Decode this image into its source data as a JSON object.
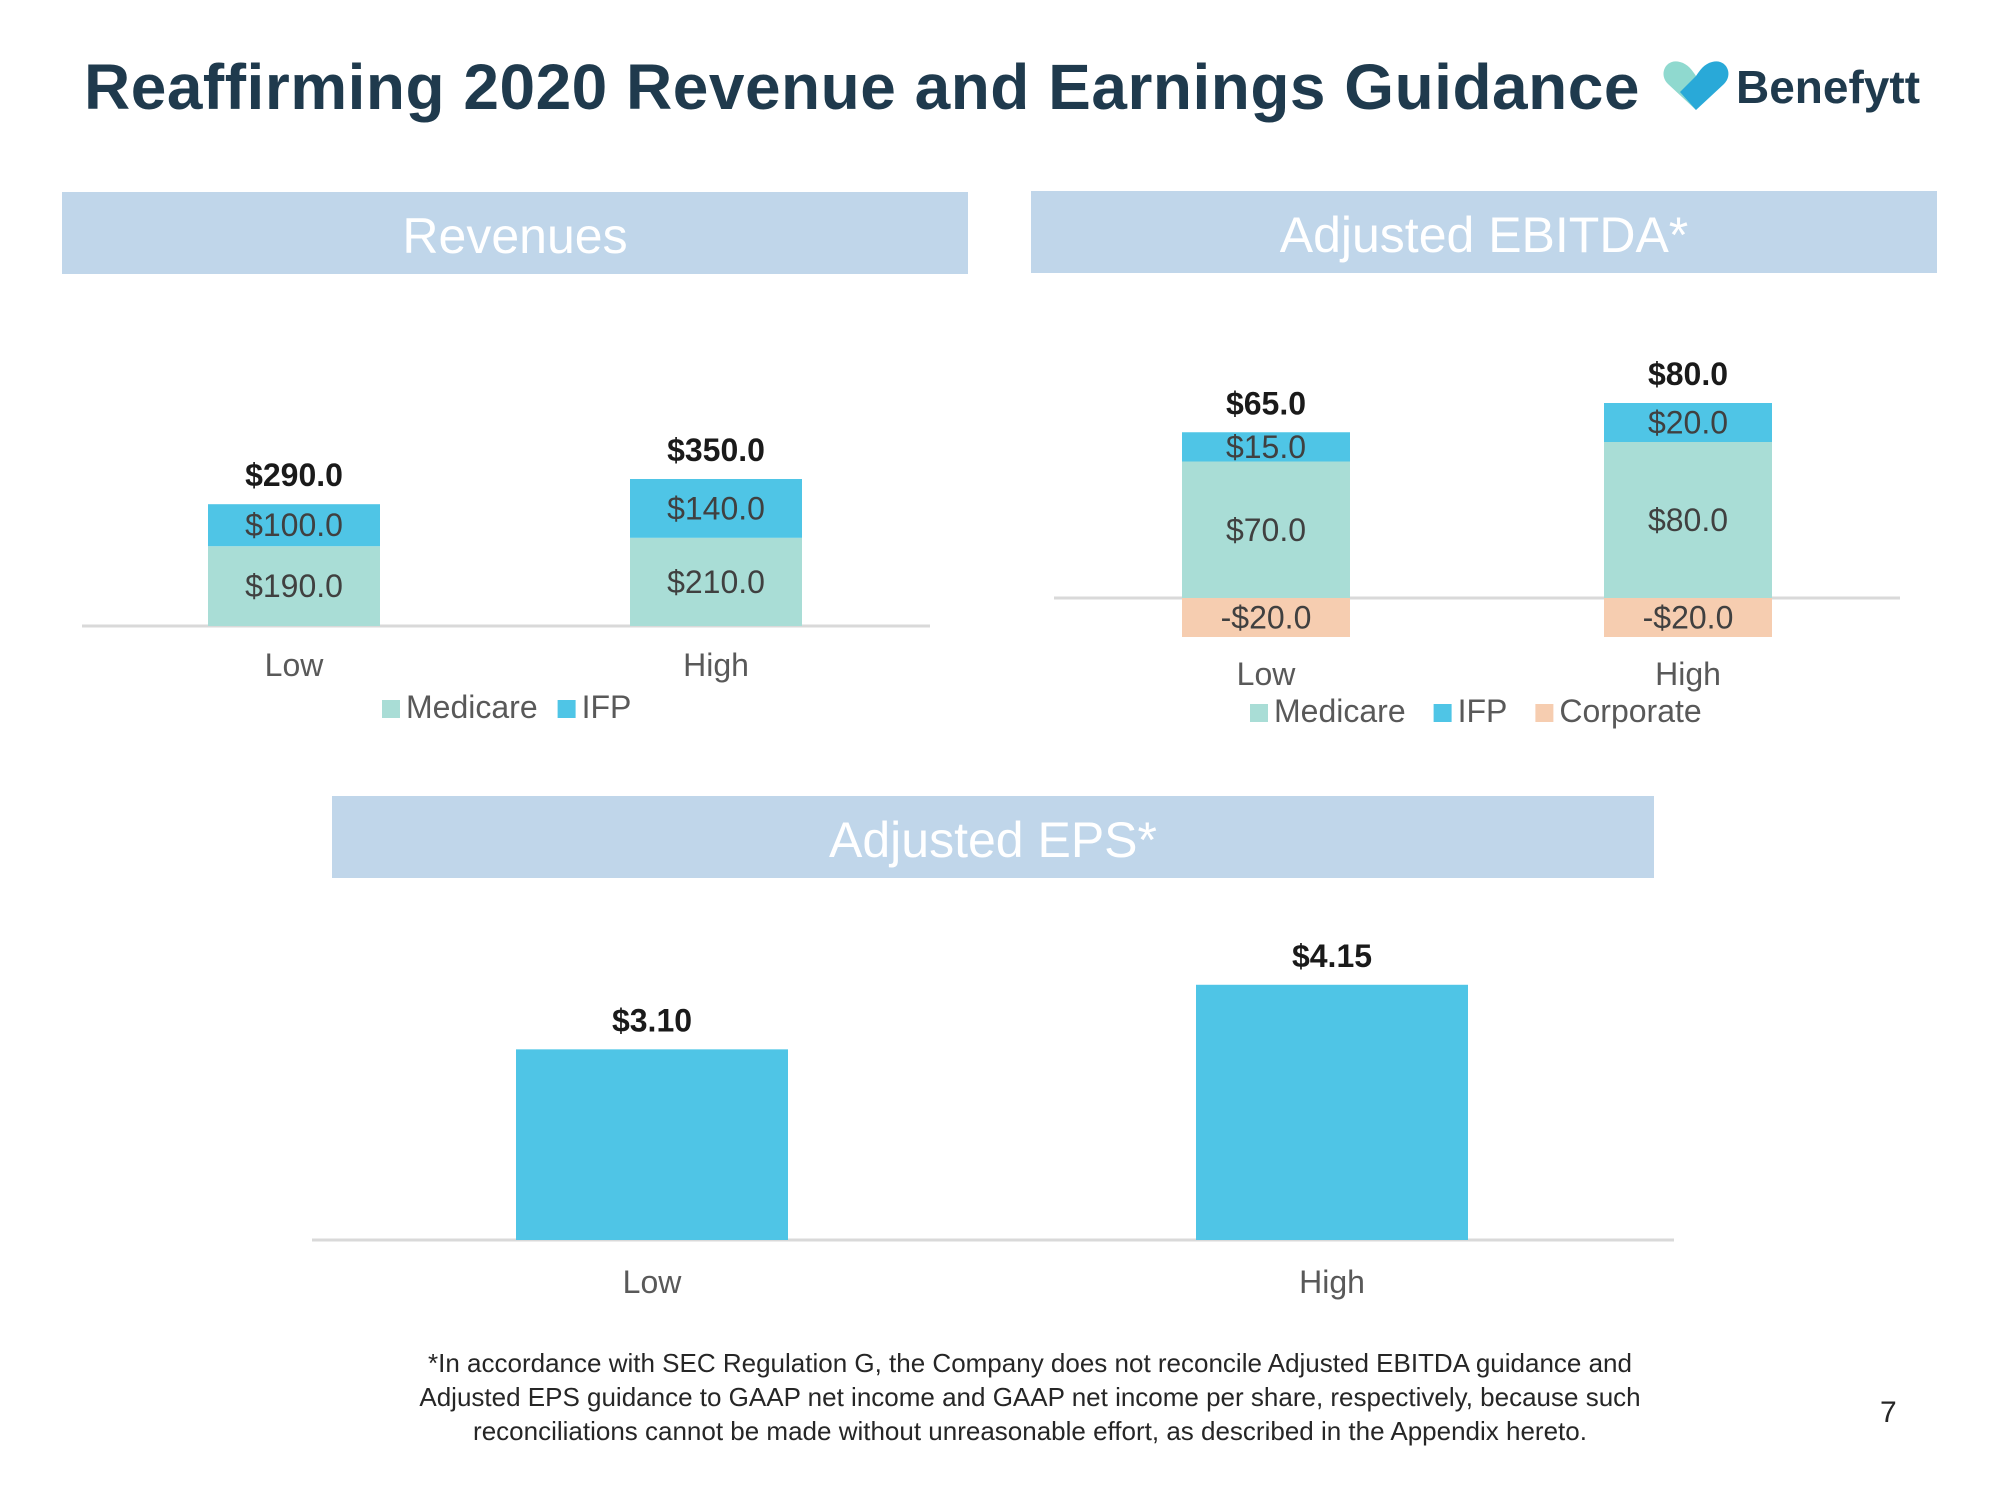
{
  "slide": {
    "title": "Reaffirming 2020 Revenue and Earnings Guidance",
    "brand": "Benefytt",
    "page_number": "7",
    "footnote_lines": [
      "*In accordance with SEC Regulation G, the Company does not reconcile Adjusted EBITDA guidance and",
      "Adjusted EPS guidance to GAAP net income and GAAP net income per share, respectively, because such",
      "reconciliations cannot be made without unreasonable effort, as described in the Appendix hereto."
    ]
  },
  "colors": {
    "medicare": "#a9ddd6",
    "ifp": "#4fc5e6",
    "corporate": "#f6cdb0",
    "header": "#c0d6ea",
    "axis": "#d9d9d9",
    "logo_dark": "#29a9d8",
    "logo_light": "#8fd9cf"
  },
  "chart_data": [
    {
      "id": "revenues",
      "type": "bar",
      "stacked": true,
      "title": "Revenues",
      "categories": [
        "Low",
        "High"
      ],
      "series": [
        {
          "name": "Medicare",
          "values": [
            190.0,
            210.0
          ],
          "labels": [
            "$190.0",
            "$210.0"
          ]
        },
        {
          "name": "IFP",
          "values": [
            100.0,
            140.0
          ],
          "labels": [
            "$100.0",
            "$140.0"
          ]
        }
      ],
      "totals": [
        290.0,
        350.0
      ],
      "total_labels": [
        "$290.0",
        "$350.0"
      ],
      "legend": [
        "Medicare",
        "IFP"
      ],
      "ylim": [
        0,
        350
      ]
    },
    {
      "id": "ebitda",
      "type": "bar",
      "stacked": true,
      "title": "Adjusted EBITDA*",
      "categories": [
        "Low",
        "High"
      ],
      "series": [
        {
          "name": "Medicare",
          "values": [
            70.0,
            80.0
          ],
          "labels": [
            "$70.0",
            "$80.0"
          ]
        },
        {
          "name": "IFP",
          "values": [
            15.0,
            20.0
          ],
          "labels": [
            "$15.0",
            "$20.0"
          ]
        },
        {
          "name": "Corporate",
          "values": [
            -20.0,
            -20.0
          ],
          "labels": [
            "-$20.0",
            "-$20.0"
          ]
        }
      ],
      "totals": [
        65.0,
        80.0
      ],
      "total_labels": [
        "$65.0",
        "$80.0"
      ],
      "legend": [
        "Medicare",
        "IFP",
        "Corporate"
      ],
      "ylim": [
        -20,
        100
      ]
    },
    {
      "id": "eps",
      "type": "bar",
      "stacked": false,
      "title": "Adjusted EPS*",
      "categories": [
        "Low",
        "High"
      ],
      "series": [
        {
          "name": "IFP",
          "values": [
            3.1,
            4.15
          ]
        }
      ],
      "total_labels": [
        "$3.10",
        "$4.15"
      ],
      "ylim": [
        0,
        4.15
      ]
    }
  ]
}
